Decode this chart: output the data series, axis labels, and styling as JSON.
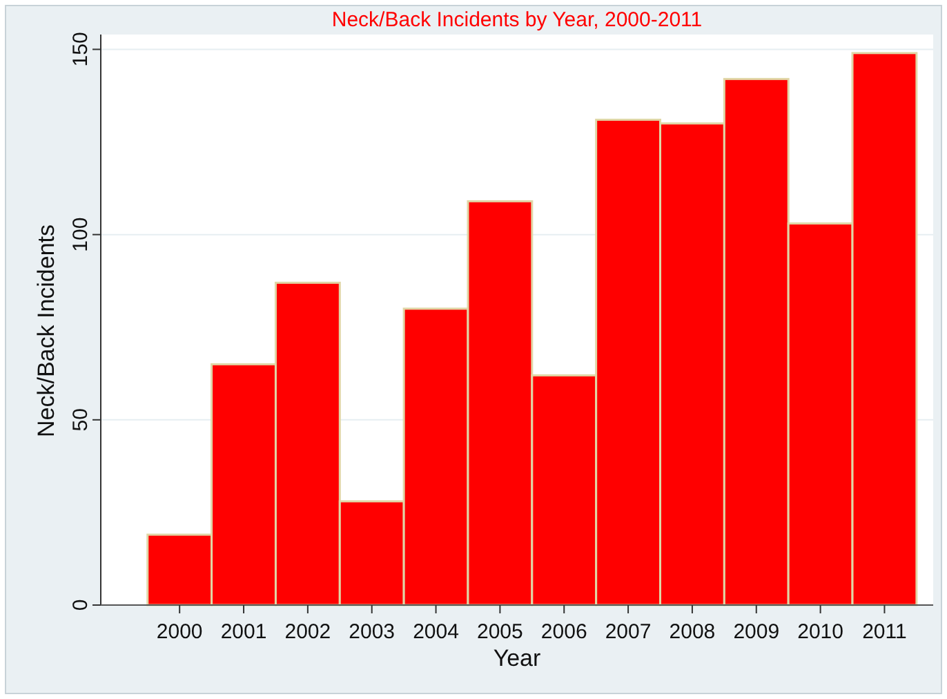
{
  "chart_data": {
    "type": "histogram",
    "title": "Neck/Back Incidents by Year, 2000-2011",
    "xlabel": "Year",
    "ylabel": "Neck/Back Incidents",
    "bins": [
      1999.5,
      2000.5,
      2001.5,
      2002.5,
      2003.5,
      2004.5,
      2005.5,
      2006.5,
      2007.5,
      2008.5,
      2009.5,
      2010.5,
      2011.5
    ],
    "values": [
      19,
      65,
      87,
      28,
      80,
      109,
      62,
      131,
      130,
      142,
      103,
      149
    ],
    "color": "#ff0000",
    "xlim": [
      1998.77,
      2011.76
    ],
    "xticks": [
      2000,
      2001,
      2002,
      2003,
      2004,
      2005,
      2006,
      2007,
      2008,
      2009,
      2010,
      2011
    ],
    "ylim": [
      0,
      154
    ],
    "yticks": [
      0,
      50,
      100,
      150
    ],
    "grid": "y"
  }
}
